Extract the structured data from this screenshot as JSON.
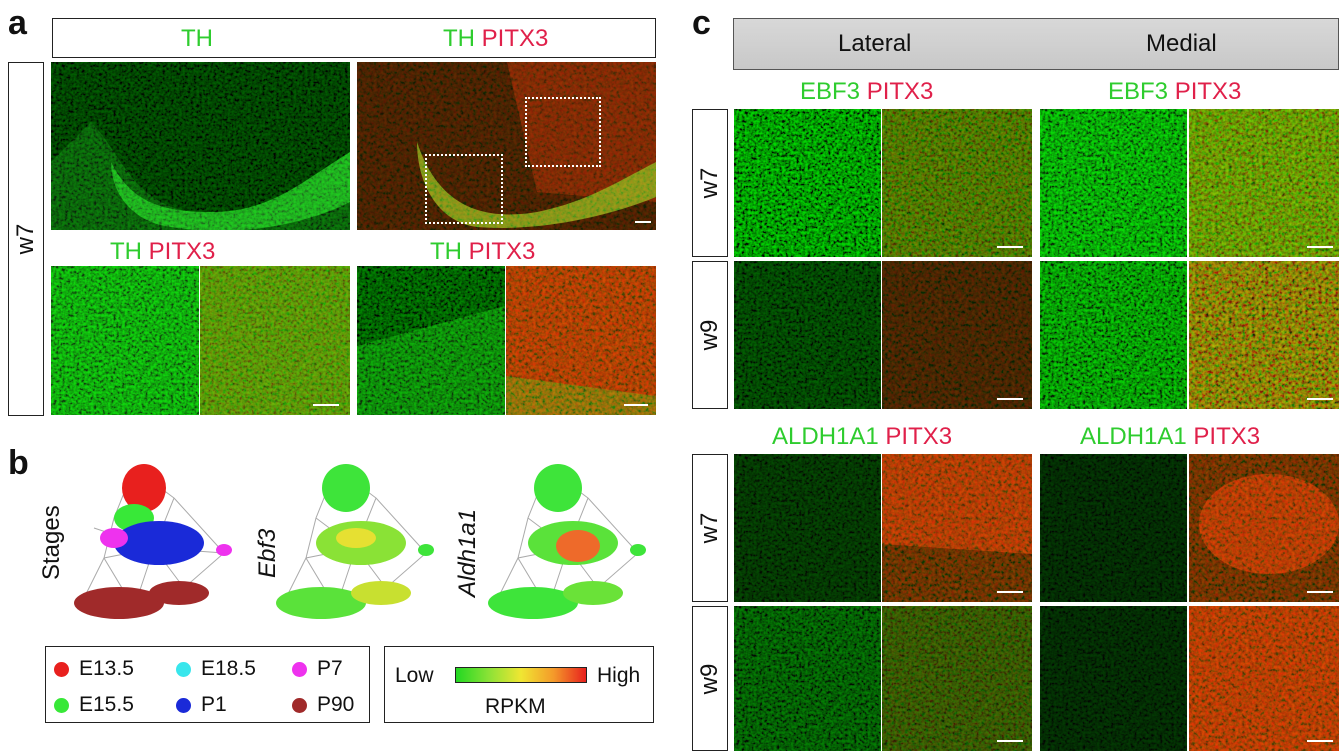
{
  "panel_a": {
    "letter": "a",
    "header": {
      "left": "TH",
      "right_green": "TH",
      "right_red": "PITX3"
    },
    "row_label": "w7",
    "sub_left": {
      "green": "TH",
      "red": "PITX3"
    },
    "sub_right": {
      "green": "TH",
      "red": "PITX3"
    }
  },
  "panel_b": {
    "letter": "b",
    "graph_labels": [
      "Stages",
      "Ebf3",
      "Aldh1a1"
    ],
    "stage_legend": [
      {
        "label": "E13.5",
        "color": "#e8201e"
      },
      {
        "label": "E18.5",
        "color": "#38e6ec"
      },
      {
        "label": "P7",
        "color": "#ee32ee"
      },
      {
        "label": "E15.5",
        "color": "#38e838"
      },
      {
        "label": "P1",
        "color": "#1a2ad8"
      },
      {
        "label": "P90",
        "color": "#a02a2a"
      }
    ],
    "scale": {
      "low": "Low",
      "high": "High",
      "unit": "RPKM"
    }
  },
  "panel_c": {
    "letter": "c",
    "header": {
      "lateral": "Lateral",
      "medial": "Medial"
    },
    "top_labels": {
      "green": "EBF3",
      "red": "PITX3"
    },
    "bottom_labels": {
      "green": "ALDH1A1",
      "red": "PITX3"
    },
    "rows": [
      "w7",
      "w9",
      "w7",
      "w9"
    ]
  },
  "colors": {
    "green": "#2ecc2e",
    "red": "#e0204a"
  }
}
